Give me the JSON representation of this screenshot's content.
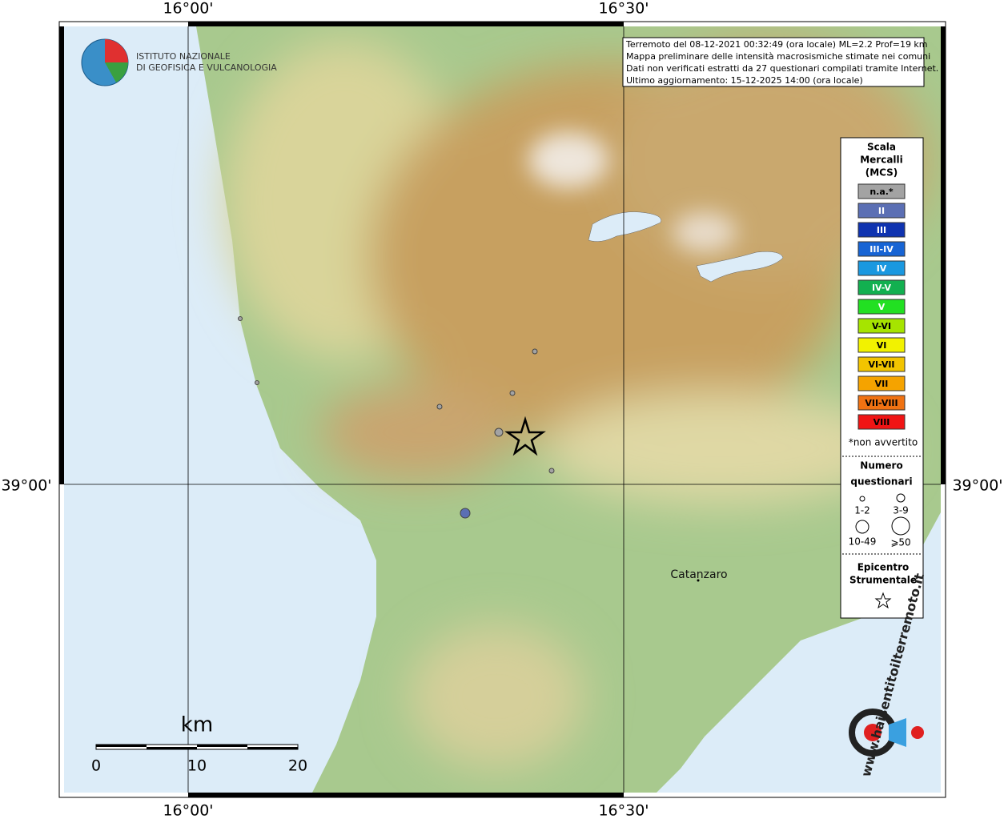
{
  "map": {
    "grid_labels": {
      "lon_left_top": "16°00'",
      "lon_right_top": "16°30'",
      "lon_left_bottom": "16°00'",
      "lon_right_bottom": "16°30'",
      "lat_left": "39°00'",
      "lat_right": "39°00'"
    },
    "institute": [
      "ISTITUTO NAZIONALE",
      "DI GEOFISICA E VULCANOLOGIA"
    ],
    "info": [
      "Terremoto del 08-12-2021 00:32:49 (ora locale) ML=2.2 Prof=19 km",
      "Mappa preliminare delle intensità macrosismiche stimate nei comuni",
      "Dati non verificati estratti da 27 questionari compilati tramite Internet.",
      "Ultimo aggiornamento: 15-12-2025 14:00 (ora locale)"
    ],
    "legend": {
      "title": [
        "Scala",
        "Mercalli",
        "(MCS)"
      ],
      "scale": [
        {
          "label": "n.a.*",
          "color": "#a3a3a3"
        },
        {
          "label": "II",
          "color": "#5b6fb4"
        },
        {
          "label": "III",
          "color": "#0f33b0"
        },
        {
          "label": "III-IV",
          "color": "#1764d4"
        },
        {
          "label": "IV",
          "color": "#1a98e0"
        },
        {
          "label": "IV-V",
          "color": "#12b050"
        },
        {
          "label": "V",
          "color": "#22e022"
        },
        {
          "label": "V-VI",
          "color": "#a6e400"
        },
        {
          "label": "VI",
          "color": "#f2f200"
        },
        {
          "label": "VI-VII",
          "color": "#f2c400"
        },
        {
          "label": "VII",
          "color": "#f5a300"
        },
        {
          "label": "VII-VIII",
          "color": "#f07212"
        },
        {
          "label": "VIII",
          "color": "#f01414"
        }
      ],
      "note": "*non avvertito",
      "count_title": [
        "Numero",
        "questionari"
      ],
      "counts": [
        "1-2",
        "3-9",
        "10-49",
        "⩾50"
      ],
      "epicenter": [
        "Epicentro",
        "Strumentale"
      ]
    },
    "city": "Catanzaro",
    "scalebar": {
      "unit": "km",
      "labels": [
        "0",
        "10",
        "20"
      ]
    },
    "website": "www.haisentitoilterremoto.it"
  }
}
